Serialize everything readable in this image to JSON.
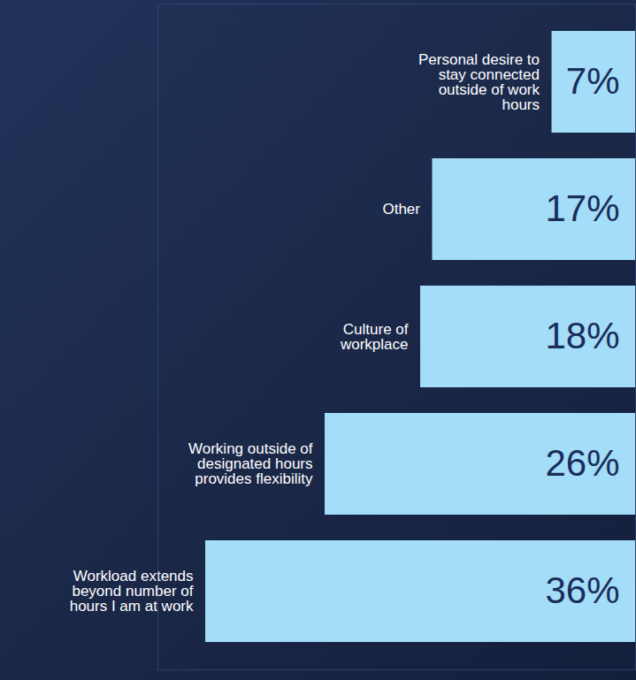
{
  "chart_data": {
    "type": "bar",
    "orientation": "horizontal",
    "categories": [
      "Personal desire to stay connected outside of work hours",
      "Other",
      "Culture of workplace",
      "Working outside of designated hours provides flexibility",
      "Workload extends beyond number of hours I am at work"
    ],
    "values": [
      7,
      17,
      18,
      26,
      36
    ],
    "value_labels": [
      "7%",
      "17%",
      "18%",
      "26%",
      "36%"
    ],
    "data_labels": true,
    "color": "#a3ddf7",
    "xlim": [
      0,
      40
    ],
    "tick_labels": false
  }
}
